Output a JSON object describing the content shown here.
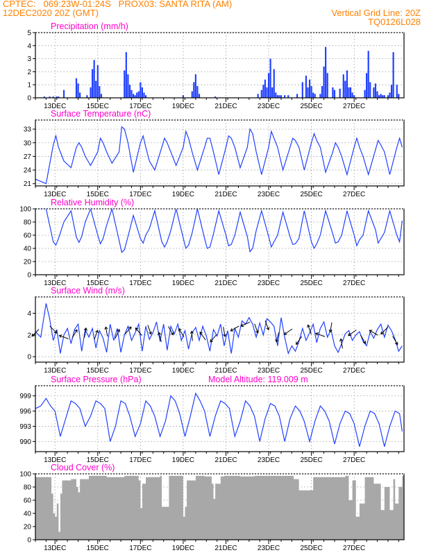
{
  "header": {
    "line1_left": "CPTEC:   069:23W-01:24S   PROX03: SANTA RITA (AM)",
    "line2_left": "12DEC2020 20Z (GMT)",
    "line2_right": "Vertical Grid Line: 20Z",
    "line3_right": "TQ0126L028"
  },
  "colors": {
    "header": "#ff8000",
    "title": "#ff00cc",
    "line": "#2040ff",
    "cloud": "#a8a8a8",
    "arrow": "#000000"
  },
  "chart_data": [
    {
      "type": "bar",
      "title": "Precipitation (mm/h)",
      "ylim": [
        0,
        5
      ],
      "yticks": [
        0,
        1,
        2,
        3,
        4,
        5
      ],
      "xticks": [
        "13DEC",
        "15DEC",
        "17DEC",
        "19DEC",
        "21DEC",
        "23DEC",
        "25DEC",
        "27DEC"
      ],
      "grid": true,
      "x_hours": [
        10,
        16,
        20,
        24,
        26,
        32,
        46,
        48,
        50,
        58,
        62,
        64,
        66,
        68,
        70,
        72,
        74,
        100,
        102,
        104,
        106,
        108,
        110,
        112,
        114,
        116,
        118,
        120,
        122,
        124,
        166,
        176,
        178,
        180,
        182,
        184,
        202,
        250,
        254,
        256,
        258,
        260,
        262,
        264,
        266,
        268,
        270,
        272,
        274,
        276,
        280,
        284,
        294,
        300,
        304,
        306,
        308,
        310,
        312,
        314,
        320,
        322,
        324,
        326,
        328,
        334,
        336,
        342,
        346,
        348,
        350,
        352,
        354,
        356,
        358,
        370,
        372,
        374,
        376,
        380,
        382,
        384,
        386,
        388,
        390,
        392,
        396,
        398,
        400,
        402,
        406,
        408
      ],
      "values": [
        0.1,
        0.1,
        0.1,
        0.1,
        0.1,
        0.6,
        1.5,
        1.1,
        0.4,
        0.2,
        0.8,
        2.2,
        2.9,
        1.3,
        2.5,
        0.9,
        0.3,
        2.1,
        3.5,
        1.8,
        1.0,
        0.6,
        0.3,
        0.2,
        0.4,
        0.5,
        1.2,
        0.8,
        0.4,
        0.2,
        0.2,
        0.5,
        1.2,
        1.8,
        0.9,
        0.3,
        0.1,
        0.3,
        0.6,
        1.0,
        1.4,
        0.8,
        1.9,
        3.0,
        0.8,
        2.2,
        0.4,
        0.2,
        0.2,
        0.2,
        0.2,
        0.2,
        0.3,
        1.2,
        1.7,
        0.8,
        1.4,
        0.9,
        0.4,
        0.3,
        0.3,
        0.9,
        2.4,
        3.9,
        1.9,
        0.8,
        0.6,
        0.7,
        1.8,
        1.3,
        2.1,
        0.8,
        0.8,
        0.4,
        0.2,
        0.6,
        1.9,
        3.6,
        1.2,
        0.8,
        1.1,
        0.5,
        0.2,
        0.3,
        0.2,
        0.2,
        0.2,
        0.4,
        1.0,
        3.5,
        1.0,
        0.3
      ]
    },
    {
      "type": "line",
      "title": "Surface Temperature (nC)",
      "ylim": [
        20.5,
        35
      ],
      "yticks": [
        21,
        24,
        27,
        30,
        33
      ],
      "xticks": [
        "13DEC",
        "15DEC",
        "17DEC",
        "19DEC",
        "21DEC",
        "23DEC",
        "25DEC",
        "27DEC"
      ],
      "grid": true,
      "x_hours": [
        0,
        12,
        20,
        23,
        26,
        32,
        40,
        46,
        49,
        52,
        56,
        62,
        70,
        73,
        76,
        80,
        86,
        94,
        97,
        100,
        104,
        110,
        118,
        121,
        124,
        128,
        134,
        142,
        145,
        148,
        152,
        158,
        166,
        169,
        172,
        176,
        182,
        190,
        193,
        196,
        200,
        206,
        214,
        217,
        220,
        224,
        230,
        238,
        241,
        244,
        248,
        254,
        262,
        265,
        268,
        272,
        278,
        286,
        289,
        292,
        296,
        302,
        310,
        313,
        316,
        320,
        326,
        334,
        337,
        340,
        344,
        350,
        358,
        361,
        364,
        368,
        374,
        382,
        385,
        388,
        392,
        398,
        406,
        409,
        412
      ],
      "values": [
        22,
        21,
        29.5,
        31.5,
        29,
        26,
        24.5,
        29,
        30,
        29,
        27,
        25,
        28,
        31,
        30,
        28,
        25.5,
        28,
        33.5,
        33,
        30,
        23.5,
        30,
        31.5,
        29,
        26,
        24,
        29,
        31,
        30,
        28,
        25,
        29,
        32.5,
        31,
        28,
        24,
        29,
        31,
        31,
        28,
        23,
        29,
        31.5,
        31,
        29,
        24.5,
        29,
        33,
        32,
        28,
        23,
        29,
        32.5,
        31,
        29,
        24,
        29,
        31,
        30.5,
        29,
        24,
        30,
        32,
        30.5,
        29,
        23.5,
        28,
        30,
        29,
        27,
        23,
        29,
        31,
        29,
        27,
        23,
        28.5,
        30.5,
        29.5,
        28,
        23,
        29,
        31,
        29
      ]
    },
    {
      "type": "line",
      "title": "Relative Humidity (%)",
      "ylim": [
        0,
        100
      ],
      "yticks": [
        0,
        20,
        40,
        60,
        80,
        100
      ],
      "xticks": [
        "13DEC",
        "15DEC",
        "17DEC",
        "19DEC",
        "21DEC",
        "23DEC",
        "25DEC",
        "27DEC"
      ],
      "grid": true,
      "x_hours": [
        0,
        12,
        20,
        23,
        26,
        32,
        40,
        46,
        49,
        52,
        56,
        62,
        70,
        73,
        76,
        80,
        86,
        94,
        97,
        100,
        104,
        110,
        118,
        121,
        124,
        128,
        134,
        142,
        145,
        148,
        152,
        158,
        166,
        169,
        172,
        176,
        182,
        190,
        193,
        196,
        200,
        206,
        214,
        217,
        220,
        224,
        230,
        238,
        241,
        244,
        248,
        254,
        262,
        265,
        268,
        272,
        278,
        286,
        289,
        292,
        296,
        302,
        310,
        313,
        316,
        320,
        326,
        334,
        337,
        340,
        344,
        350,
        358,
        361,
        364,
        368,
        374,
        382,
        385,
        388,
        392,
        398,
        406,
        409,
        412
      ],
      "values": [
        100,
        100,
        50,
        45,
        55,
        80,
        97,
        57,
        49,
        58,
        80,
        100,
        60,
        47,
        55,
        75,
        100,
        52,
        34,
        38,
        58,
        90,
        55,
        48,
        60,
        70,
        97,
        50,
        42,
        50,
        67,
        100,
        56,
        40,
        45,
        63,
        100,
        55,
        40,
        42,
        62,
        97,
        60,
        44,
        46,
        60,
        95,
        58,
        35,
        40,
        67,
        97,
        58,
        42,
        50,
        60,
        95,
        58,
        46,
        47,
        55,
        97,
        50,
        40,
        47,
        60,
        97,
        62,
        48,
        50,
        60,
        97,
        60,
        44,
        53,
        60,
        97,
        68,
        48,
        55,
        64,
        97,
        60,
        50,
        82
      ]
    },
    {
      "type": "line",
      "title": "Surface Wind (m/s)",
      "ylim": [
        -0.5,
        5.5
      ],
      "yticks": [
        0,
        2,
        4
      ],
      "xticks": [
        "13DEC",
        "15DEC",
        "17DEC",
        "19DEC",
        "21DEC",
        "23DEC",
        "25DEC",
        "27DEC"
      ],
      "grid": true,
      "x_hours": [
        0,
        6,
        12,
        16,
        20,
        24,
        28,
        32,
        36,
        40,
        44,
        48,
        52,
        56,
        60,
        64,
        68,
        72,
        76,
        80,
        84,
        88,
        92,
        96,
        100,
        104,
        108,
        112,
        116,
        120,
        124,
        128,
        132,
        136,
        140,
        144,
        148,
        152,
        156,
        160,
        164,
        168,
        172,
        176,
        180,
        184,
        188,
        192,
        196,
        200,
        204,
        208,
        212,
        216,
        220,
        224,
        228,
        232,
        236,
        240,
        244,
        248,
        252,
        256,
        260,
        264,
        268,
        272,
        276,
        280,
        284,
        288,
        292,
        296,
        300,
        304,
        308,
        312,
        316,
        320,
        324,
        328,
        332,
        336,
        340,
        344,
        348,
        352,
        356,
        360,
        364,
        368,
        372,
        376,
        380,
        384,
        388,
        392,
        396,
        400,
        404,
        408,
        412
      ],
      "values": [
        2.3,
        1.8,
        4.9,
        3.5,
        1.5,
        2.5,
        0.3,
        2.0,
        2.6,
        1.2,
        2.5,
        3.0,
        0.5,
        2.5,
        1.8,
        2.6,
        0.8,
        2.4,
        1.7,
        0.4,
        3.0,
        1.5,
        2.6,
        0.4,
        2.0,
        2.8,
        1.5,
        2.2,
        3.0,
        0.5,
        2.8,
        1.6,
        2.2,
        3.2,
        1.4,
        3.0,
        0.6,
        2.8,
        2.1,
        3.0,
        1.5,
        2.4,
        0.7,
        2.2,
        2.7,
        1.5,
        2.8,
        1.9,
        0.5,
        2.5,
        1.9,
        3.0,
        1.0,
        2.4,
        0.3,
        2.6,
        1.8,
        3.3,
        3.0,
        3.6,
        3.0,
        1.8,
        3.1,
        2.0,
        3.5,
        3.2,
        2.8,
        1.0,
        3.6,
        1.8,
        0.3,
        1.0,
        0.5,
        1.4,
        2.6,
        1.5,
        2.2,
        3.0,
        1.3,
        2.6,
        3.2,
        1.8,
        2.5,
        1.0,
        0.4,
        1.2,
        2.1,
        2.4,
        1.5,
        2.0,
        2.3,
        1.4,
        1.0,
        2.3,
        1.7,
        2.5,
        3.0,
        1.8,
        2.9,
        2.4,
        1.6,
        0.5,
        1.0
      ],
      "arrows": {
        "x_hours": [
          0,
          20,
          32,
          44,
          56,
          68,
          80,
          92,
          104,
          116,
          128,
          140,
          152,
          164,
          176,
          188,
          200,
          212,
          224,
          236,
          248,
          260,
          272,
          284,
          296,
          308,
          320,
          332,
          344,
          356,
          368,
          380,
          392,
          404
        ],
        "dir_deg": [
          225,
          315,
          160,
          60,
          80,
          70,
          100,
          65,
          50,
          130,
          290,
          105,
          300,
          120,
          95,
          125,
          230,
          280,
          210,
          205,
          290,
          290,
          255,
          215,
          235,
          110,
          160,
          260,
          100,
          215,
          300,
          150,
          225,
          300
        ],
        "speed": [
          2.2,
          2.5,
          1.8,
          2.1,
          2.2,
          2.0,
          2.3,
          2.1,
          2.4,
          2.3,
          2.5,
          1.8,
          2.4,
          2.2,
          1.9,
          1.9,
          1.7,
          2.3,
          2.6,
          3.0,
          2.6,
          2.9,
          1.8,
          2.3,
          1.5,
          2.5,
          2.0,
          2.7,
          1.2,
          2.2,
          1.6,
          2.2,
          2.4,
          1.5
        ]
      }
    },
    {
      "type": "line",
      "title": "Surface Pressure (hPa)",
      "subtitle": "Model Altitude: 119.009 m",
      "ylim": [
        988,
        1001
      ],
      "yticks": [
        990,
        993,
        996,
        999
      ],
      "xticks": [
        "13DEC",
        "15DEC",
        "17DEC",
        "19DEC",
        "21DEC",
        "23DEC",
        "25DEC",
        "27DEC"
      ],
      "grid": true,
      "x_hours": [
        0,
        6,
        12,
        17,
        22,
        28,
        34,
        40,
        45,
        50,
        56,
        62,
        68,
        73,
        78,
        84,
        90,
        96,
        101,
        106,
        112,
        118,
        124,
        129,
        134,
        140,
        146,
        152,
        157,
        162,
        168,
        174,
        180,
        185,
        190,
        196,
        202,
        208,
        213,
        218,
        224,
        230,
        236,
        241,
        246,
        252,
        258,
        264,
        269,
        274,
        280,
        286,
        292,
        297,
        302,
        308,
        314,
        320,
        325,
        330,
        336,
        342,
        348,
        353,
        358,
        364,
        370,
        376,
        381,
        386,
        392,
        398,
        404,
        409,
        412
      ],
      "values": [
        996.5,
        997,
        998.5,
        997,
        996,
        991,
        994.5,
        998,
        997.5,
        996.5,
        993,
        995,
        998,
        997.5,
        996.5,
        990,
        993,
        998,
        997.5,
        995,
        991,
        993.5,
        998,
        997,
        995,
        991,
        994,
        999,
        998,
        995.5,
        991,
        995,
        999.5,
        998,
        996,
        991,
        995,
        998,
        997.5,
        996.5,
        991,
        994,
        998,
        997,
        995,
        990,
        994.5,
        997.5,
        997,
        995,
        990,
        994.5,
        997,
        996,
        994,
        990,
        994,
        997,
        996,
        994,
        989.5,
        993.5,
        996,
        995.5,
        993.5,
        989,
        993,
        996,
        995.5,
        993.5,
        989,
        993,
        996,
        995.5,
        992
      ]
    },
    {
      "type": "bar",
      "title": "Cloud Cover (%)",
      "ylim": [
        0,
        100
      ],
      "yticks": [
        0,
        20,
        40,
        60,
        80,
        100
      ],
      "xticks": [
        "13DEC",
        "15DEC",
        "17DEC",
        "19DEC",
        "21DEC",
        "23DEC",
        "25DEC",
        "27DEC"
      ],
      "grid": true,
      "x_hours": [
        0,
        12,
        18,
        20,
        22,
        24,
        26,
        28,
        30,
        40,
        46,
        48,
        50,
        60,
        72,
        80,
        100,
        116,
        118,
        120,
        124,
        140,
        142,
        150,
        164,
        166,
        168,
        170,
        180,
        190,
        198,
        200,
        202,
        208,
        212,
        230,
        246,
        270,
        290,
        296,
        312,
        332,
        348,
        352,
        356,
        360,
        364,
        370,
        380,
        388,
        392,
        398,
        402,
        404,
        408,
        412
      ],
      "values": [
        95,
        95,
        70,
        40,
        35,
        55,
        12,
        70,
        90,
        92,
        80,
        72,
        92,
        97,
        97,
        95,
        97,
        90,
        48,
        85,
        95,
        97,
        50,
        97,
        97,
        35,
        50,
        90,
        97,
        96,
        85,
        62,
        85,
        96,
        97,
        96,
        97,
        97,
        92,
        75,
        95,
        95,
        97,
        60,
        90,
        35,
        55,
        95,
        85,
        45,
        80,
        45,
        92,
        55,
        80,
        97
      ]
    }
  ]
}
